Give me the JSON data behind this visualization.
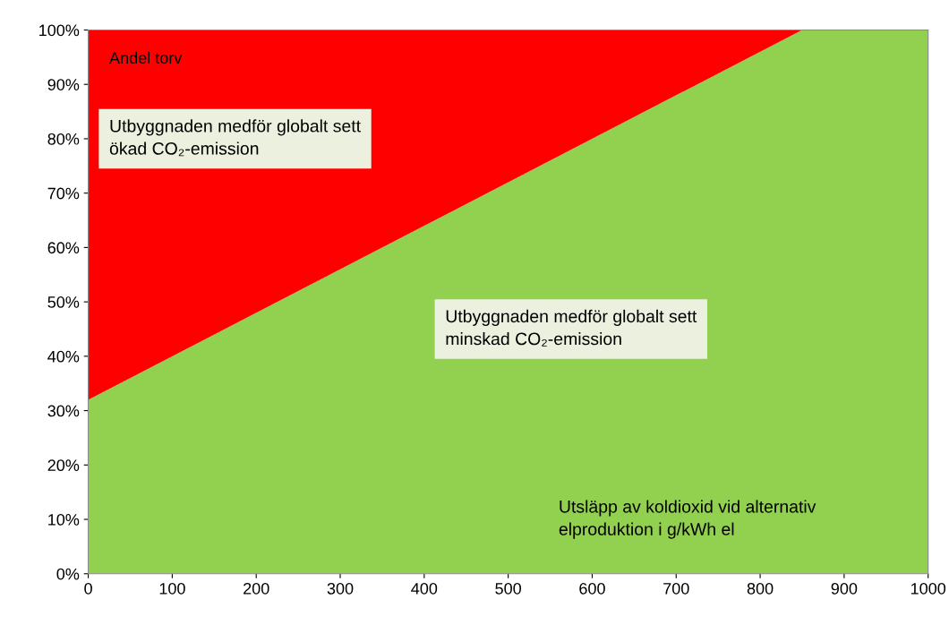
{
  "chart_data": {
    "type": "area",
    "stacked": true,
    "x": [
      0,
      850,
      1000
    ],
    "series": [
      {
        "color": "#92d050",
        "values": [
          32,
          100,
          100
        ]
      },
      {
        "color": "#ff0000",
        "values": [
          68,
          0,
          0
        ]
      }
    ],
    "xlim": [
      0,
      1000
    ],
    "xticks": [
      0,
      100,
      200,
      300,
      400,
      500,
      600,
      700,
      800,
      900,
      1000
    ],
    "ylim": [
      0,
      100
    ],
    "yticks": [
      {
        "value": 0,
        "label": "0%"
      },
      {
        "value": 10,
        "label": "10%"
      },
      {
        "value": 20,
        "label": "20%"
      },
      {
        "value": 30,
        "label": "30%"
      },
      {
        "value": 40,
        "label": "40%"
      },
      {
        "value": 50,
        "label": "50%"
      },
      {
        "value": 60,
        "label": "60%"
      },
      {
        "value": 70,
        "label": "70%"
      },
      {
        "value": 80,
        "label": "80%"
      },
      {
        "value": 90,
        "label": "90%"
      },
      {
        "value": 100,
        "label": "100%"
      }
    ],
    "ylabel": "Andel torv",
    "xlabel": "Utsläpp av koldioxid vid alternativ\nelproduktion i g/kWh el",
    "annotations": [
      "Utbyggnaden medför globalt sett\nökad CO₂-emission",
      "Utbyggnaden medför globalt sett\nminskad CO₂-emission"
    ],
    "grid": false,
    "legend": false
  }
}
